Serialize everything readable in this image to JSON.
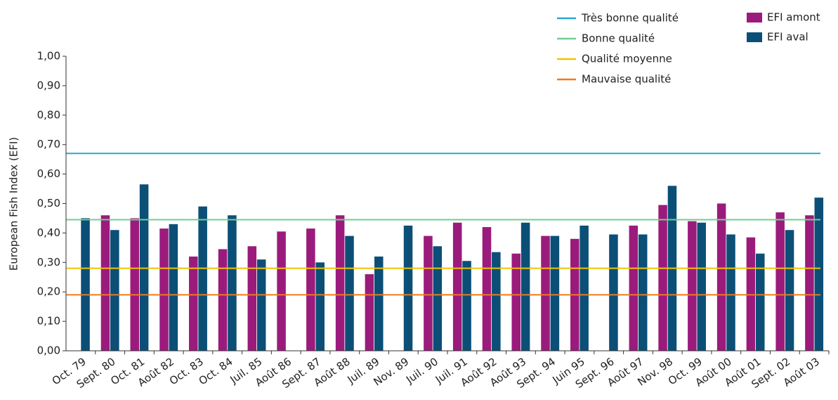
{
  "chart_data": {
    "type": "bar",
    "y_label": "European Fish Index (EFI)",
    "categories": [
      "Oct. 79",
      "Sept. 80",
      "Oct. 81",
      "Août 82",
      "Oct. 83",
      "Oct. 84",
      "Juil. 85",
      "Août 86",
      "Sept. 87",
      "Août 88",
      "Juil. 89",
      "Nov. 89",
      "Juil. 90",
      "Juil. 91",
      "Août 92",
      "Août 93",
      "Sept. 94",
      "Juin 95",
      "Sept. 96",
      "Août 97",
      "Nov. 98",
      "Oct. 99",
      "Août 00",
      "Août 01",
      "Sept. 02",
      "Août 03"
    ],
    "series": [
      {
        "name": "EFI amont",
        "color": "#9b1b7c",
        "values": [
          null,
          0.46,
          0.45,
          0.415,
          0.32,
          0.345,
          0.355,
          0.405,
          0.415,
          0.46,
          0.26,
          null,
          0.39,
          0.435,
          0.42,
          0.33,
          0.39,
          0.38,
          null,
          0.425,
          0.495,
          0.44,
          0.5,
          0.385,
          0.47,
          0.46
        ]
      },
      {
        "name": "EFI aval",
        "color": "#0b4f77",
        "values": [
          0.45,
          0.41,
          0.565,
          0.43,
          0.49,
          0.46,
          0.31,
          null,
          0.3,
          0.39,
          0.32,
          0.425,
          0.355,
          0.305,
          0.335,
          0.435,
          0.39,
          0.425,
          0.395,
          0.395,
          0.56,
          0.435,
          0.395,
          0.33,
          0.41,
          0.52
        ]
      }
    ],
    "reference_lines": [
      {
        "name": "Très bonne qualité",
        "color": "#2aa7d6",
        "value": 0.67
      },
      {
        "name": "Bonne qualité",
        "color": "#6fcf8f",
        "value": 0.445
      },
      {
        "name": "Qualité moyenne",
        "color": "#f2c200",
        "value": 0.28
      },
      {
        "name": "Mauvaise qualité",
        "color": "#f07a1a",
        "value": 0.19
      }
    ],
    "ylim": [
      0,
      1
    ],
    "yticks": [
      {
        "value": 0,
        "label": "0,00"
      },
      {
        "value": 0.1,
        "label": "0,10"
      },
      {
        "value": 0.2,
        "label": "0,20"
      },
      {
        "value": 0.3,
        "label": "0,30"
      },
      {
        "value": 0.4,
        "label": "0,40"
      },
      {
        "value": 0.5,
        "label": "0,50"
      },
      {
        "value": 0.6,
        "label": "0,60"
      },
      {
        "value": 0.7,
        "label": "0,70"
      },
      {
        "value": 0.8,
        "label": "0,80"
      },
      {
        "value": 0.9,
        "label": "0,90"
      },
      {
        "value": 1,
        "label": "1,00"
      }
    ],
    "grid": false
  }
}
